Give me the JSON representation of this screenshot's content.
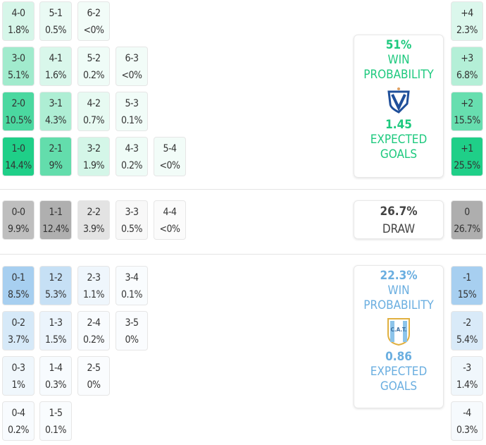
{
  "home": {
    "win_pct": "51%",
    "win_label_1": "WIN",
    "win_label_2": "PROBABILITY",
    "xg": "1.45",
    "xg_label_1": "EXPECTED",
    "xg_label_2": "GOALS",
    "color": "#1dc97e",
    "rows": [
      [
        [
          "4-0",
          "1.8%"
        ],
        [
          "5-1",
          "0.5%"
        ],
        [
          "6-2",
          "<0%"
        ]
      ],
      [
        [
          "3-0",
          "5.1%"
        ],
        [
          "4-1",
          "1.6%"
        ],
        [
          "5-2",
          "0.2%"
        ],
        [
          "6-3",
          "<0%"
        ]
      ],
      [
        [
          "2-0",
          "10.5%"
        ],
        [
          "3-1",
          "4.3%"
        ],
        [
          "4-2",
          "0.7%"
        ],
        [
          "5-3",
          "0.1%"
        ]
      ],
      [
        [
          "1-0",
          "14.4%"
        ],
        [
          "2-1",
          "9%"
        ],
        [
          "3-2",
          "1.9%"
        ],
        [
          "4-3",
          "0.2%"
        ],
        [
          "5-4",
          "<0%"
        ]
      ]
    ],
    "diffs": [
      [
        "+4",
        "2.3%"
      ],
      [
        "+3",
        "6.8%"
      ],
      [
        "+2",
        "15.5%"
      ],
      [
        "+1",
        "25.5%"
      ]
    ]
  },
  "draw": {
    "pct": "26.7%",
    "label": "DRAW",
    "cells": [
      [
        "0-0",
        "9.9%"
      ],
      [
        "1-1",
        "12.4%"
      ],
      [
        "2-2",
        "3.9%"
      ],
      [
        "3-3",
        "0.5%"
      ],
      [
        "4-4",
        "<0%"
      ]
    ],
    "diff": [
      "0",
      "26.7%"
    ]
  },
  "away": {
    "win_pct": "22.3%",
    "win_label_1": "WIN",
    "win_label_2": "PROBABILITY",
    "xg": "0.86",
    "xg_label_1": "EXPECTED",
    "xg_label_2": "GOALS",
    "color": "#6aaee0",
    "crest_text": "C.A.T.",
    "rows": [
      [
        [
          "0-1",
          "8.5%"
        ],
        [
          "1-2",
          "5.3%"
        ],
        [
          "2-3",
          "1.1%"
        ],
        [
          "3-4",
          "0.1%"
        ]
      ],
      [
        [
          "0-2",
          "3.7%"
        ],
        [
          "1-3",
          "1.5%"
        ],
        [
          "2-4",
          "0.2%"
        ],
        [
          "3-5",
          "0%"
        ]
      ],
      [
        [
          "0-3",
          "1%"
        ],
        [
          "1-4",
          "0.3%"
        ],
        [
          "2-5",
          "0%"
        ]
      ],
      [
        [
          "0-4",
          "0.2%"
        ],
        [
          "1-5",
          "0.1%"
        ]
      ]
    ],
    "diffs": [
      [
        "-1",
        "15%"
      ],
      [
        "-2",
        "5.4%"
      ],
      [
        "-3",
        "1.4%"
      ],
      [
        "-4",
        "0.3%"
      ]
    ]
  }
}
